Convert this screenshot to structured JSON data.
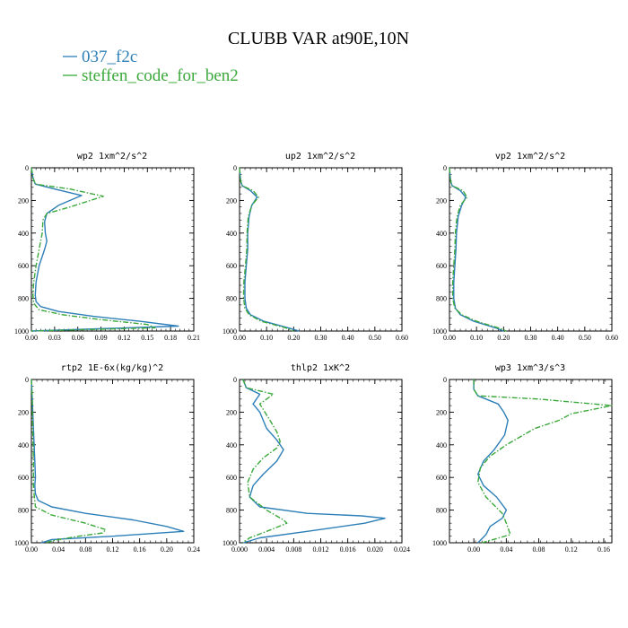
{
  "title": "CLUBB VAR at90E,10N",
  "legend": [
    {
      "label": "037_f2c",
      "color": "#2d7fb8"
    },
    {
      "label": "steffen_code_for_ben2",
      "color": "#3aa83a"
    }
  ],
  "chart_data": [
    {
      "type": "line",
      "title": "wp2  1xm^2/s^2",
      "xlim": [
        0,
        0.21
      ],
      "ylim": [
        0,
        1000
      ],
      "xticks": [
        0.0,
        0.03,
        0.06,
        0.09,
        0.12,
        0.15,
        0.18,
        0.21
      ],
      "xtick_labels": [
        "0.00",
        "0.03",
        "0.06",
        "0.09",
        "0.12",
        "0.15",
        "0.18",
        "0.21"
      ],
      "yticks": [
        0,
        200,
        400,
        600,
        800,
        1000
      ],
      "ytick_labels": [
        "0",
        "200",
        "400",
        "600",
        "800",
        "1000"
      ],
      "series": [
        {
          "name": "037_f2c",
          "x": [
            0.0,
            0.002,
            0.005,
            0.03,
            0.065,
            0.035,
            0.02,
            0.017,
            0.018,
            0.02,
            0.017,
            0.01,
            0.006,
            0.005,
            0.006,
            0.012,
            0.035,
            0.08,
            0.14,
            0.19,
            0.0
          ],
          "y": [
            0,
            60,
            100,
            130,
            170,
            230,
            280,
            330,
            400,
            450,
            500,
            600,
            700,
            780,
            820,
            850,
            880,
            910,
            940,
            970,
            1000
          ]
        },
        {
          "name": "steffen_code_for_ben2",
          "x": [
            0.0,
            0.002,
            0.005,
            0.05,
            0.093,
            0.05,
            0.02,
            0.015,
            0.014,
            0.012,
            0.01,
            0.006,
            0.003,
            0.002,
            0.003,
            0.01,
            0.04,
            0.09,
            0.15,
            0.16,
            0.0
          ],
          "y": [
            0,
            60,
            100,
            130,
            175,
            240,
            280,
            320,
            400,
            450,
            500,
            600,
            700,
            780,
            830,
            870,
            900,
            930,
            960,
            980,
            1000
          ]
        }
      ]
    },
    {
      "type": "line",
      "title": "up2  1xm^2/s^2",
      "xlim": [
        0,
        0.6
      ],
      "ylim": [
        0,
        1000
      ],
      "xticks": [
        0.0,
        0.1,
        0.2,
        0.3,
        0.4,
        0.5,
        0.6
      ],
      "xtick_labels": [
        "0.00",
        "0.10",
        "0.20",
        "0.30",
        "0.40",
        "0.50",
        "0.60"
      ],
      "yticks": [
        0,
        200,
        400,
        600,
        800,
        1000
      ],
      "ytick_labels": [
        "0",
        "200",
        "400",
        "600",
        "800",
        "1000"
      ],
      "series": [
        {
          "name": "037_f2c",
          "x": [
            0.0,
            0.004,
            0.01,
            0.04,
            0.065,
            0.045,
            0.035,
            0.03,
            0.03,
            0.025,
            0.02,
            0.02,
            0.025,
            0.04,
            0.09,
            0.18,
            0.22
          ],
          "y": [
            0,
            80,
            110,
            140,
            180,
            230,
            300,
            400,
            500,
            600,
            700,
            800,
            860,
            900,
            940,
            980,
            1000
          ]
        },
        {
          "name": "steffen_code_for_ben2",
          "x": [
            0.0,
            0.004,
            0.01,
            0.05,
            0.07,
            0.045,
            0.032,
            0.028,
            0.027,
            0.022,
            0.016,
            0.015,
            0.02,
            0.035,
            0.08,
            0.17,
            0.2
          ],
          "y": [
            0,
            80,
            110,
            140,
            180,
            230,
            300,
            400,
            500,
            600,
            700,
            800,
            860,
            900,
            940,
            980,
            1000
          ]
        }
      ]
    },
    {
      "type": "line",
      "title": "vp2  1xm^2/s^2",
      "xlim": [
        0,
        0.6
      ],
      "ylim": [
        0,
        1000
      ],
      "xticks": [
        0.0,
        0.1,
        0.2,
        0.3,
        0.4,
        0.5,
        0.6
      ],
      "xtick_labels": [
        "0.00",
        "0.10",
        "0.20",
        "0.30",
        "0.40",
        "0.50",
        "0.60"
      ],
      "yticks": [
        0,
        200,
        400,
        600,
        800,
        1000
      ],
      "ytick_labels": [
        "0",
        "200",
        "400",
        "600",
        "800",
        "1000"
      ],
      "series": [
        {
          "name": "037_f2c",
          "x": [
            0.0,
            0.004,
            0.01,
            0.04,
            0.06,
            0.045,
            0.032,
            0.026,
            0.024,
            0.02,
            0.016,
            0.016,
            0.022,
            0.04,
            0.09,
            0.17,
            0.2
          ],
          "y": [
            0,
            80,
            110,
            140,
            180,
            230,
            300,
            400,
            500,
            600,
            700,
            800,
            860,
            900,
            940,
            980,
            1000
          ]
        },
        {
          "name": "steffen_code_for_ben2",
          "x": [
            0.0,
            0.004,
            0.01,
            0.05,
            0.065,
            0.04,
            0.028,
            0.022,
            0.02,
            0.016,
            0.012,
            0.012,
            0.02,
            0.045,
            0.1,
            0.18,
            0.21
          ],
          "y": [
            0,
            80,
            110,
            140,
            180,
            230,
            300,
            400,
            500,
            600,
            700,
            800,
            860,
            900,
            940,
            980,
            1000
          ]
        }
      ]
    },
    {
      "type": "line",
      "title": "rtp2  1E-6x(kg/kg)^2",
      "xlim": [
        0,
        0.24
      ],
      "ylim": [
        0,
        1000
      ],
      "xticks": [
        0.0,
        0.04,
        0.08,
        0.12,
        0.16,
        0.2,
        0.24
      ],
      "xtick_labels": [
        "0.00",
        "0.04",
        "0.08",
        "0.12",
        "0.16",
        "0.20",
        "0.24"
      ],
      "yticks": [
        0,
        200,
        400,
        600,
        800,
        1000
      ],
      "ytick_labels": [
        "0",
        "200",
        "400",
        "600",
        "800",
        "1000"
      ],
      "series": [
        {
          "name": "037_f2c",
          "x": [
            0.0,
            0.001,
            0.003,
            0.005,
            0.006,
            0.005,
            0.006,
            0.01,
            0.03,
            0.08,
            0.15,
            0.2,
            0.225,
            0.12,
            0.03,
            0.015
          ],
          "y": [
            0,
            100,
            300,
            500,
            600,
            650,
            700,
            740,
            780,
            820,
            860,
            900,
            930,
            960,
            980,
            1000
          ]
        },
        {
          "name": "steffen_code_for_ben2",
          "x": [
            0.0,
            0.001,
            0.002,
            0.003,
            0.003,
            0.003,
            0.004,
            0.006,
            0.03,
            0.08,
            0.11,
            0.105,
            0.07,
            0.04,
            0.02
          ],
          "y": [
            0,
            100,
            300,
            500,
            600,
            650,
            700,
            780,
            830,
            880,
            920,
            940,
            960,
            980,
            1000
          ]
        }
      ]
    },
    {
      "type": "line",
      "title": "thlp2  1xK^2",
      "xlim": [
        0,
        0.024
      ],
      "ylim": [
        0,
        1000
      ],
      "xticks": [
        0.0,
        0.004,
        0.008,
        0.012,
        0.016,
        0.02,
        0.024
      ],
      "xtick_labels": [
        "0.000",
        "0.004",
        "0.008",
        "0.012",
        "0.016",
        "0.020",
        "0.024"
      ],
      "yticks": [
        0,
        200,
        400,
        600,
        800,
        1000
      ],
      "ytick_labels": [
        "0",
        "200",
        "400",
        "600",
        "800",
        "1000"
      ],
      "series": [
        {
          "name": "037_f2c",
          "x": [
            0.0005,
            0.001,
            0.003,
            0.002,
            0.003,
            0.004,
            0.0055,
            0.0065,
            0.0055,
            0.0035,
            0.002,
            0.0015,
            0.003,
            0.01,
            0.018,
            0.0215,
            0.0185,
            0.01,
            0.003,
            0.0006
          ],
          "y": [
            0,
            50,
            90,
            150,
            200,
            300,
            370,
            430,
            500,
            580,
            650,
            720,
            780,
            820,
            835,
            850,
            880,
            930,
            970,
            1000
          ]
        },
        {
          "name": "steffen_code_for_ben2",
          "x": [
            0.0005,
            0.001,
            0.005,
            0.003,
            0.0045,
            0.0055,
            0.006,
            0.0055,
            0.0035,
            0.002,
            0.0012,
            0.0015,
            0.004,
            0.0065,
            0.007,
            0.004,
            0.0015,
            0.0005
          ],
          "y": [
            0,
            50,
            90,
            150,
            250,
            320,
            380,
            420,
            480,
            550,
            630,
            720,
            800,
            860,
            880,
            930,
            970,
            1000
          ]
        }
      ]
    },
    {
      "type": "line",
      "title": "wp3  1xm^3/s^3",
      "xlim": [
        -0.03,
        0.17
      ],
      "ylim": [
        0,
        1000
      ],
      "xticks": [
        0.0,
        0.04,
        0.08,
        0.12,
        0.16
      ],
      "xtick_labels": [
        "0.00",
        "0.04",
        "0.08",
        "0.12",
        "0.16"
      ],
      "yticks": [
        0,
        200,
        400,
        600,
        800,
        1000
      ],
      "ytick_labels": [
        "0",
        "200",
        "400",
        "600",
        "800",
        "1000"
      ],
      "series": [
        {
          "name": "037_f2c",
          "x": [
            0.0,
            0.0,
            0.005,
            0.03,
            0.037,
            0.042,
            0.038,
            0.025,
            0.012,
            0.005,
            0.012,
            0.028,
            0.04,
            0.035,
            0.02,
            0.015,
            0.005
          ],
          "y": [
            0,
            60,
            100,
            150,
            200,
            250,
            340,
            430,
            500,
            580,
            650,
            720,
            800,
            850,
            900,
            950,
            1000
          ]
        },
        {
          "name": "steffen_code_for_ben2",
          "x": [
            0.0,
            0.0,
            0.005,
            0.08,
            0.17,
            0.12,
            0.105,
            0.075,
            0.04,
            0.02,
            0.008,
            0.005,
            0.015,
            0.035,
            0.04,
            0.045,
            0.01
          ],
          "y": [
            0,
            60,
            100,
            120,
            160,
            210,
            250,
            300,
            400,
            470,
            540,
            630,
            720,
            820,
            880,
            950,
            1000
          ]
        }
      ]
    }
  ]
}
